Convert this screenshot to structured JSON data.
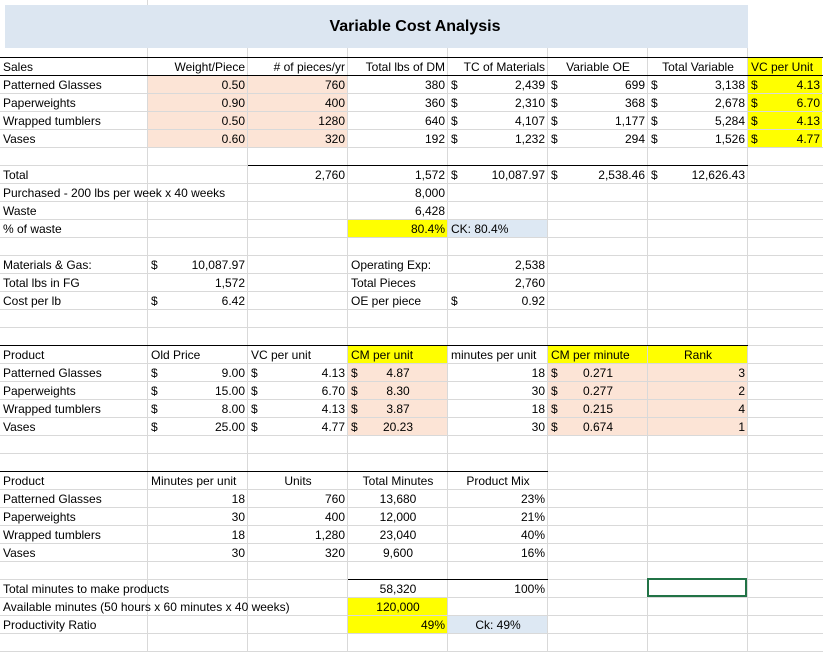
{
  "title": "Variable Cost Analysis",
  "rows": [
    [
      "Sales",
      "Weight/Piece",
      "# of pieces/yr",
      "Total lbs of DM",
      "TC of Materials",
      "Variable OE",
      "Total Variable",
      "VC per Unit"
    ],
    [
      "Patterned Glasses",
      "0.50",
      "760",
      "380",
      "$",
      "2,439",
      "$",
      "699",
      "$",
      "3,138",
      "$",
      "4.13"
    ],
    [
      "Paperweights",
      "0.90",
      "400",
      "360",
      "$",
      "2,310",
      "$",
      "368",
      "$",
      "2,678",
      "$",
      "6.70"
    ],
    [
      "Wrapped tumblers",
      "0.50",
      "1280",
      "640",
      "$",
      "4,107",
      "$",
      "1,177",
      "$",
      "5,284",
      "$",
      "4.13"
    ],
    [
      "Vases",
      "0.60",
      "320",
      "192",
      "$",
      "1,232",
      "$",
      "294",
      "$",
      "1,526",
      "$",
      "4.77"
    ],
    [
      "Total",
      "2,760",
      "1,572",
      "$",
      "10,087.97",
      "$",
      "2,538.46",
      "$",
      "12,626.43"
    ],
    [
      "Purchased - 200 lbs per week x 40 weeks",
      "8,000"
    ],
    [
      "Waste",
      "6,428"
    ],
    [
      "% of waste",
      "80.4%",
      "CK: 80.4%"
    ],
    [
      "Materials & Gas:",
      "$",
      "10,087.97",
      "Operating Exp:",
      "2,538"
    ],
    [
      "Total lbs in FG",
      "1,572",
      "Total Pieces",
      "2,760"
    ],
    [
      "Cost per lb",
      "$",
      "6.42",
      "OE per piece",
      "$",
      "0.92"
    ],
    [
      "Product",
      "Old Price",
      "VC per unit",
      "CM per unit",
      "minutes per unit",
      "CM per minute",
      "Rank"
    ],
    [
      "Patterned Glasses",
      "$",
      "9.00",
      "$",
      "4.13",
      "$",
      "4.87",
      "18",
      "$",
      "0.271",
      "3"
    ],
    [
      "Paperweights",
      "$",
      "15.00",
      "$",
      "6.70",
      "$",
      "8.30",
      "30",
      "$",
      "0.277",
      "2"
    ],
    [
      "Wrapped tumblers",
      "$",
      "8.00",
      "$",
      "4.13",
      "$",
      "3.87",
      "18",
      "$",
      "0.215",
      "4"
    ],
    [
      "Vases",
      "$",
      "25.00",
      "$",
      "4.77",
      "$",
      "20.23",
      "30",
      "$",
      "0.674",
      "1"
    ],
    [
      "Product",
      "Minutes per unit",
      "Units",
      "Total Minutes",
      "Product Mix"
    ],
    [
      "Patterned Glasses",
      "18",
      "760",
      "13,680",
      "23%"
    ],
    [
      "Paperweights",
      "30",
      "400",
      "12,000",
      "21%"
    ],
    [
      "Wrapped tumblers",
      "18",
      "1,280",
      "23,040",
      "40%"
    ],
    [
      "Vases",
      "30",
      "320",
      "9,600",
      "16%"
    ],
    [
      "Total minutes to make products",
      "58,320",
      "100%"
    ],
    [
      "Available minutes (50 hours x 60 minutes x 40 weeks)",
      "120,000"
    ],
    [
      "Productivity Ratio",
      "49%",
      "Ck: 49%"
    ]
  ]
}
